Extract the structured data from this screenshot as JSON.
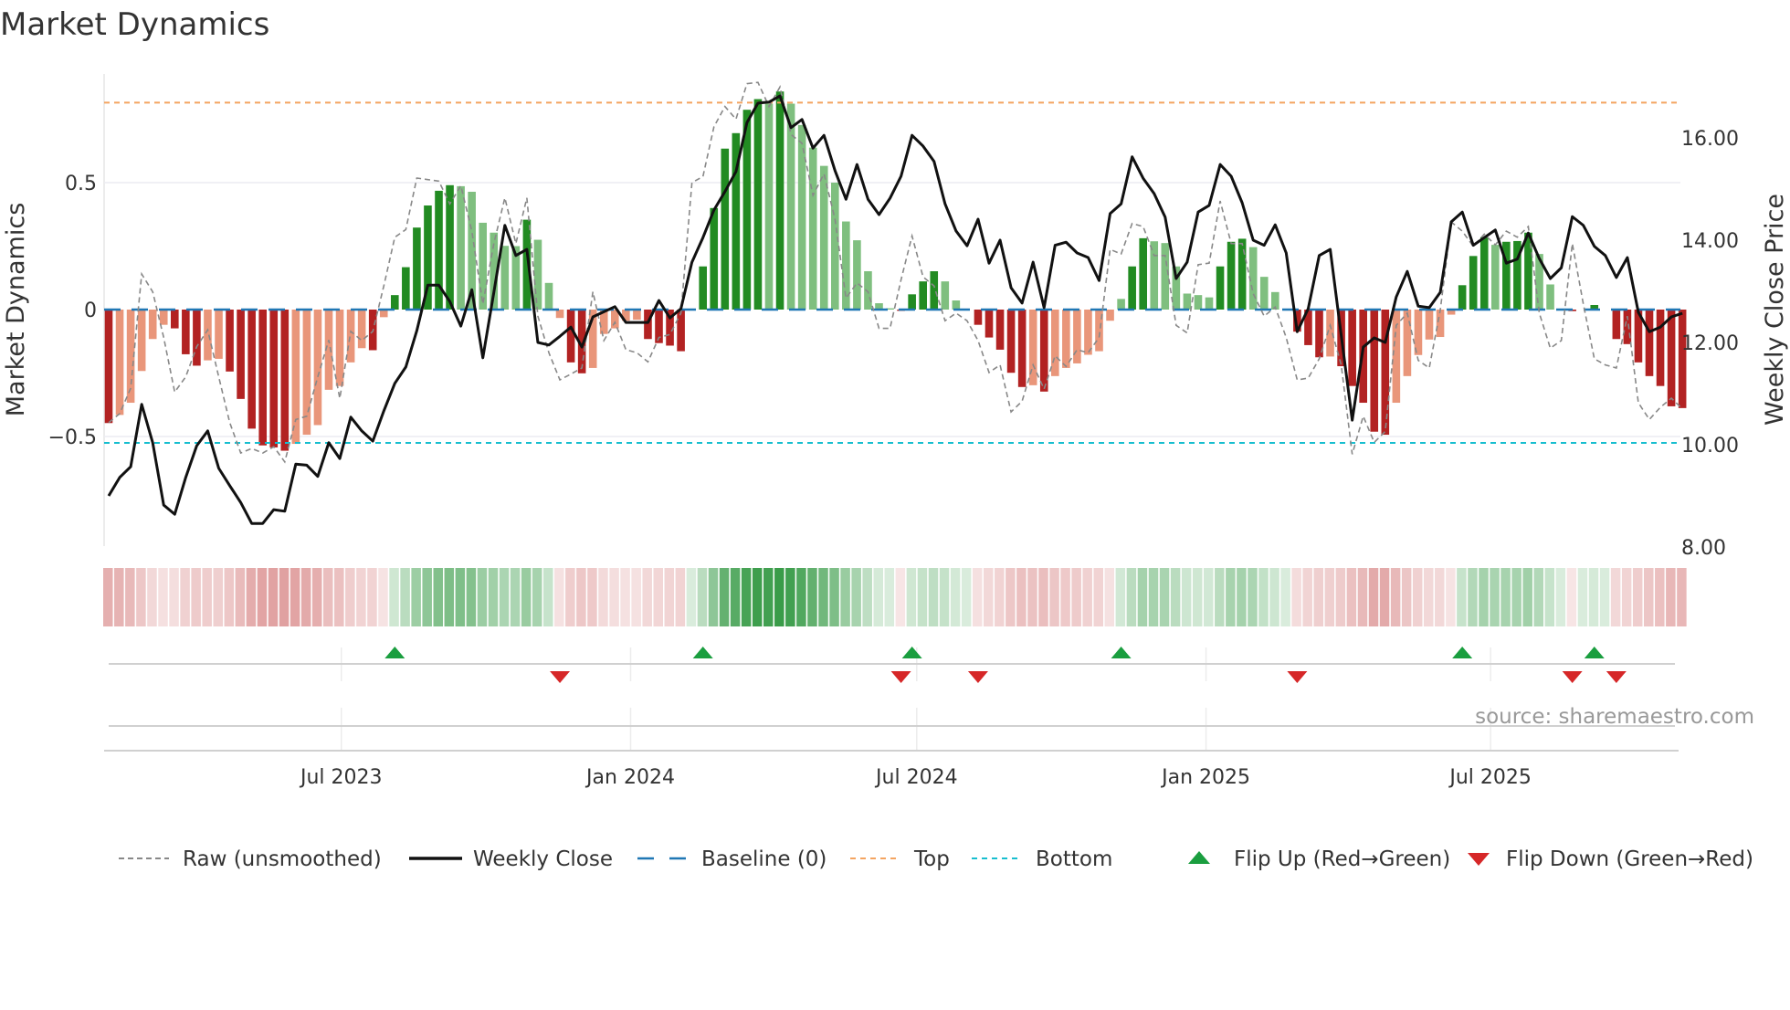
{
  "title": "Market Dynamics",
  "source_note": "source: sharemaestro.com",
  "chart_data": {
    "type": "bar",
    "title": "Market Dynamics",
    "ylabel": "Market Dynamics",
    "y2label": "Weekly Close Price",
    "start_date": "2023-02-03",
    "frequency": "weekly",
    "ylim": [
      -0.86,
      0.86
    ],
    "y2lim": [
      8.0,
      17.0
    ],
    "yticks": [
      {
        "v": 0.5,
        "label": "0.5"
      },
      {
        "v": 0,
        "label": "0"
      },
      {
        "v": -0.5,
        "label": "−0.5"
      }
    ],
    "y2ticks": [
      {
        "v": 16,
        "label": "16.00"
      },
      {
        "v": 14,
        "label": "14.00"
      },
      {
        "v": 12,
        "label": "12.00"
      },
      {
        "v": 10,
        "label": "10.00"
      },
      {
        "v": 8,
        "label": "8.00"
      }
    ],
    "xticks": [
      {
        "date": "2023-07-01",
        "label": "Jul 2023"
      },
      {
        "date": "2024-01-01",
        "label": "Jan 2024"
      },
      {
        "date": "2024-07-01",
        "label": "Jul 2024"
      },
      {
        "date": "2025-01-01",
        "label": "Jan 2025"
      },
      {
        "date": "2025-07-01",
        "label": "Jul 2025"
      }
    ],
    "reference_lines": {
      "top": 0.815,
      "bottom": -0.525,
      "baseline": 0
    },
    "momentum": [
      -0.447,
      -0.415,
      -0.367,
      -0.242,
      -0.116,
      -0.06,
      -0.074,
      -0.176,
      -0.221,
      -0.2,
      -0.194,
      -0.244,
      -0.352,
      -0.469,
      -0.535,
      -0.543,
      -0.556,
      -0.529,
      -0.493,
      -0.455,
      -0.316,
      -0.301,
      -0.208,
      -0.152,
      -0.16,
      -0.03,
      0.057,
      0.167,
      0.323,
      0.41,
      0.468,
      0.49,
      0.486,
      0.464,
      0.342,
      0.303,
      0.251,
      0.25,
      0.354,
      0.275,
      0.105,
      -0.033,
      -0.208,
      -0.251,
      -0.23,
      -0.096,
      -0.074,
      -0.044,
      -0.04,
      -0.116,
      -0.132,
      -0.142,
      -0.164,
      0.0,
      0.17,
      0.4,
      0.634,
      0.695,
      0.787,
      0.829,
      0.811,
      0.859,
      0.811,
      0.727,
      0.638,
      0.566,
      0.5,
      0.347,
      0.273,
      0.151,
      0.025,
      0.005,
      -0.005,
      0.06,
      0.111,
      0.151,
      0.111,
      0.036,
      0.0,
      -0.06,
      -0.11,
      -0.158,
      -0.249,
      -0.305,
      -0.298,
      -0.323,
      -0.262,
      -0.23,
      -0.212,
      -0.178,
      -0.164,
      -0.044,
      0.042,
      0.17,
      0.281,
      0.269,
      0.262,
      0.17,
      0.063,
      0.057,
      0.048,
      0.17,
      0.267,
      0.279,
      0.246,
      0.129,
      0.069,
      0.0,
      -0.087,
      -0.14,
      -0.188,
      -0.185,
      -0.223,
      -0.301,
      -0.367,
      -0.481,
      -0.493,
      -0.367,
      -0.262,
      -0.179,
      -0.118,
      -0.108,
      -0.02,
      0.096,
      0.211,
      0.285,
      0.255,
      0.267,
      0.27,
      0.303,
      0.219,
      0.099,
      0.0,
      -0.006,
      0.0,
      0.018,
      0.0,
      -0.116,
      -0.136,
      -0.208,
      -0.262,
      -0.301,
      -0.381,
      -0.388
    ],
    "raw": [
      -0.445,
      -0.41,
      -0.31,
      0.14,
      0.07,
      -0.11,
      -0.325,
      -0.265,
      -0.146,
      -0.08,
      -0.265,
      -0.445,
      -0.565,
      -0.547,
      -0.565,
      -0.54,
      -0.6,
      -0.433,
      -0.42,
      -0.265,
      -0.12,
      -0.35,
      -0.086,
      -0.122,
      -0.086,
      0.093,
      0.285,
      0.315,
      0.518,
      0.512,
      0.506,
      0.416,
      0.488,
      0.309,
      0.022,
      0.26,
      0.44,
      0.26,
      0.44,
      -0.026,
      -0.17,
      -0.277,
      -0.254,
      -0.23,
      0.07,
      -0.122,
      -0.05,
      -0.158,
      -0.17,
      -0.206,
      -0.11,
      -0.098,
      -0.014,
      0.5,
      0.524,
      0.72,
      0.8,
      0.75,
      0.89,
      0.895,
      0.8,
      0.877,
      0.69,
      0.655,
      0.45,
      0.535,
      0.356,
      0.045,
      0.105,
      0.07,
      -0.074,
      -0.074,
      0.117,
      0.29,
      0.129,
      0.093,
      -0.044,
      -0.014,
      -0.044,
      -0.122,
      -0.248,
      -0.218,
      -0.403,
      -0.361,
      -0.218,
      -0.313,
      -0.182,
      -0.224,
      -0.158,
      -0.17,
      -0.11,
      0.237,
      0.219,
      0.339,
      0.327,
      0.213,
      0.213,
      -0.062,
      -0.092,
      0.177,
      0.183,
      0.428,
      0.26,
      0.26,
      0.063,
      -0.026,
      0.01,
      -0.11,
      -0.277,
      -0.27,
      -0.194,
      -0.062,
      -0.218,
      -0.57,
      -0.42,
      -0.523,
      -0.48,
      -0.062,
      -0.014,
      -0.2,
      -0.23,
      -0.002,
      0.345,
      0.309,
      0.249,
      0.297,
      0.255,
      0.309,
      0.285,
      0.327,
      -0.014,
      -0.152,
      -0.122,
      0.26,
      0.022,
      -0.194,
      -0.218,
      -0.23,
      -0.026,
      -0.367,
      -0.433,
      -0.385,
      -0.349,
      -0.391
    ],
    "close": [
      9.0,
      9.36,
      9.57,
      10.79,
      10.04,
      8.82,
      8.64,
      9.36,
      9.98,
      10.27,
      9.54,
      9.2,
      8.87,
      8.46,
      8.46,
      8.73,
      8.7,
      9.62,
      9.6,
      9.38,
      10.04,
      9.73,
      10.54,
      10.27,
      10.07,
      10.66,
      11.2,
      11.52,
      12.23,
      13.12,
      13.12,
      12.8,
      12.32,
      13.03,
      11.7,
      12.98,
      14.29,
      13.7,
      13.82,
      12.0,
      11.95,
      12.12,
      12.3,
      11.91,
      12.5,
      12.6,
      12.7,
      12.39,
      12.39,
      12.39,
      12.82,
      12.48,
      12.66,
      13.57,
      14.05,
      14.59,
      14.95,
      15.34,
      16.3,
      16.68,
      16.7,
      16.82,
      16.2,
      16.36,
      15.8,
      16.05,
      15.36,
      14.8,
      15.48,
      14.8,
      14.5,
      14.82,
      15.25,
      16.05,
      15.84,
      15.54,
      14.71,
      14.18,
      13.89,
      14.41,
      13.55,
      14.0,
      13.07,
      12.77,
      13.57,
      12.68,
      13.9,
      13.96,
      13.75,
      13.66,
      13.21,
      14.52,
      14.71,
      15.63,
      15.21,
      14.91,
      14.45,
      13.25,
      13.57,
      14.55,
      14.68,
      15.48,
      15.25,
      14.73,
      14.0,
      13.9,
      14.3,
      13.75,
      12.21,
      12.66,
      13.7,
      13.82,
      12.14,
      10.48,
      11.91,
      12.09,
      12.0,
      12.89,
      13.39,
      12.71,
      12.68,
      12.98,
      14.36,
      14.55,
      13.9,
      14.05,
      14.2,
      13.55,
      13.63,
      14.14,
      13.64,
      13.25,
      13.46,
      14.46,
      14.29,
      13.88,
      13.7,
      13.27,
      13.66,
      12.59,
      12.21,
      12.3,
      12.5,
      12.57
    ],
    "flip_up_week_index": [
      27,
      55,
      74,
      93,
      124,
      136
    ],
    "flip_down_week_index": [
      42,
      73,
      80,
      109,
      134,
      138
    ],
    "colors": {
      "strong_up": "#228b22",
      "weak_up": "#7fbf7f",
      "strong_down": "#b22222",
      "weak_down": "#e9967a",
      "close": "#111111",
      "raw": "#888888",
      "baseline": "#1f77b4",
      "top": "#f4a460",
      "bottom": "#17becf",
      "flip_up": "#1a9e3f",
      "flip_down": "#d62728"
    },
    "legend": {
      "position": "bottom",
      "items": [
        {
          "label": "Raw (unsmoothed)",
          "icon": "dashed-gray-line"
        },
        {
          "label": "Weekly Close",
          "icon": "solid-black-line"
        },
        {
          "label": "Baseline (0)",
          "icon": "dashed-blue-line"
        },
        {
          "label": "Top",
          "icon": "dotted-orange-line"
        },
        {
          "label": "Bottom",
          "icon": "dotted-cyan-line"
        },
        {
          "label": "Flip Up (Red→Green)",
          "icon": "triangle-up-icon"
        },
        {
          "label": "Flip Down (Green→Red)",
          "icon": "triangle-down-icon"
        }
      ]
    }
  }
}
